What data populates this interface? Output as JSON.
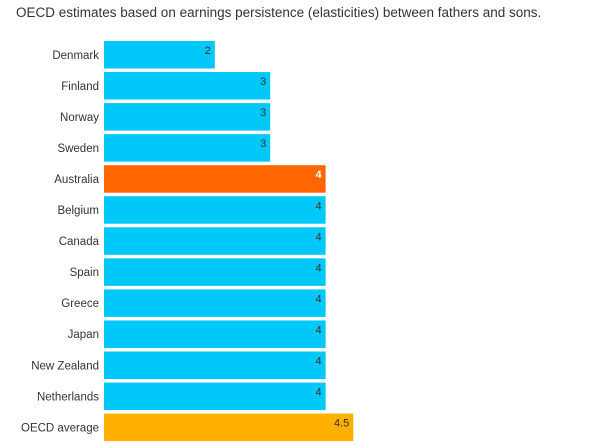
{
  "chart_data": {
    "type": "bar",
    "orientation": "horizontal",
    "title": "OECD estimates based on earnings persistence (elasticities) between fathers and sons.",
    "xlabel": "",
    "ylabel": "",
    "xlim": [
      0,
      10
    ],
    "grid": false,
    "legend": "none",
    "categories": [
      "Denmark",
      "Finland",
      "Norway",
      "Sweden",
      "Australia",
      "Belgium",
      "Canada",
      "Spain",
      "Greece",
      "Japan",
      "New Zealand",
      "Netherlands",
      "OECD average"
    ],
    "values": [
      2,
      3,
      3,
      3,
      4,
      4,
      4,
      4,
      4,
      4,
      4,
      4,
      4.5
    ],
    "value_labels": [
      "2",
      "3",
      "3",
      "3",
      "4",
      "4",
      "4",
      "4",
      "4",
      "4",
      "4",
      "4",
      "4.5"
    ],
    "colors": {
      "default": "#00c8f8",
      "highlight": "#ff6600",
      "average": "#ffb000"
    },
    "highlight_category": "Australia",
    "average_category": "OECD average"
  }
}
